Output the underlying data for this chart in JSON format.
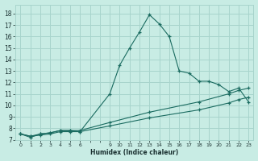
{
  "xlabel": "Humidex (Indice chaleur)",
  "bg_color": "#c8ece4",
  "grid_color": "#a8d4cc",
  "line_color": "#1a6b60",
  "xlim": [
    -0.5,
    23.5
  ],
  "ylim": [
    7,
    18.8
  ],
  "xtick_labels": [
    "0",
    "1",
    "2",
    "3",
    "4",
    "5",
    "6",
    "",
    "",
    "9",
    "10",
    "11",
    "12",
    "13",
    "14",
    "15",
    "16",
    "17",
    "18",
    "19",
    "20",
    "21",
    "22",
    "23"
  ],
  "xtick_positions": [
    0,
    1,
    2,
    3,
    4,
    5,
    6,
    7,
    8,
    9,
    10,
    11,
    12,
    13,
    14,
    15,
    16,
    17,
    18,
    19,
    20,
    21,
    22,
    23
  ],
  "yticks": [
    7,
    8,
    9,
    10,
    11,
    12,
    13,
    14,
    15,
    16,
    17,
    18
  ],
  "series1_x": [
    0,
    1,
    2,
    3,
    4,
    5,
    6,
    9,
    10,
    11,
    12,
    13,
    14,
    15,
    16,
    17,
    18,
    19,
    20,
    21,
    22,
    23
  ],
  "series1_y": [
    7.5,
    7.2,
    7.5,
    7.6,
    7.8,
    7.8,
    7.7,
    11.0,
    13.5,
    15.0,
    16.4,
    17.9,
    17.1,
    16.0,
    13.0,
    12.8,
    12.1,
    12.1,
    11.8,
    11.2,
    11.5,
    10.3
  ],
  "series2_x": [
    0,
    1,
    2,
    3,
    4,
    5,
    6,
    9,
    13,
    18,
    21,
    22,
    23
  ],
  "series2_y": [
    7.5,
    7.3,
    7.5,
    7.6,
    7.8,
    7.8,
    7.8,
    8.5,
    9.4,
    10.3,
    11.0,
    11.3,
    11.5
  ],
  "series3_x": [
    0,
    1,
    2,
    3,
    4,
    5,
    6,
    9,
    13,
    18,
    21,
    22,
    23
  ],
  "series3_y": [
    7.5,
    7.3,
    7.4,
    7.5,
    7.7,
    7.7,
    7.7,
    8.2,
    8.9,
    9.6,
    10.2,
    10.5,
    10.7
  ]
}
